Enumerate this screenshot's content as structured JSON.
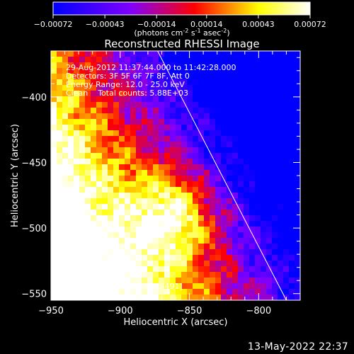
{
  "colorbar": {
    "ticks": [
      "-0.00072",
      "-0.00043",
      "-0.00014",
      "0.00014",
      "0.00043",
      "0.00072"
    ],
    "units_parts": [
      "(photons cm",
      "-2",
      " s",
      "-1",
      " asec",
      "-2",
      ")"
    ]
  },
  "chart_data": {
    "type": "heatmap",
    "title": "Reconstructed RHESSI Image",
    "xlabel": "Heliocentric X (arcsec)",
    "ylabel": "Heliocentric Y (arcsec)",
    "xlim": [
      -950,
      -770
    ],
    "ylim": [
      -555,
      -365
    ],
    "x_ticks": [
      -950,
      -900,
      -850,
      -800
    ],
    "y_ticks": [
      -400,
      -450,
      -500,
      -550
    ],
    "x_tick_labels": [
      "-950",
      "-900",
      "-850",
      "-800"
    ],
    "y_tick_labels": [
      "-400",
      "-450",
      "-500",
      "-550"
    ],
    "colorbar_range": [
      -0.00072,
      0.00072
    ],
    "colormap": [
      "#0000ff",
      "#7f00ff",
      "#ff0000",
      "#ffff00",
      "#ffffff"
    ],
    "limb_line": [
      [
        -873,
        -365
      ],
      [
        -780,
        -555
      ]
    ],
    "peak": {
      "x": -861,
      "y": -491
    },
    "annotations": [
      "29-Aug-2012 11:37:44.000 to 11:42:28.000",
      "Detectors: 3F 5F 6F 7F 8F, Att 0",
      "Energy Range: 12.0 - 25.0 keV",
      "Clean    Total counts: 5.88E+03"
    ],
    "peak_label": "Position of Peak = [-861,-491]"
  },
  "footer": {
    "timestamp": "13-May-2022 22:37"
  }
}
